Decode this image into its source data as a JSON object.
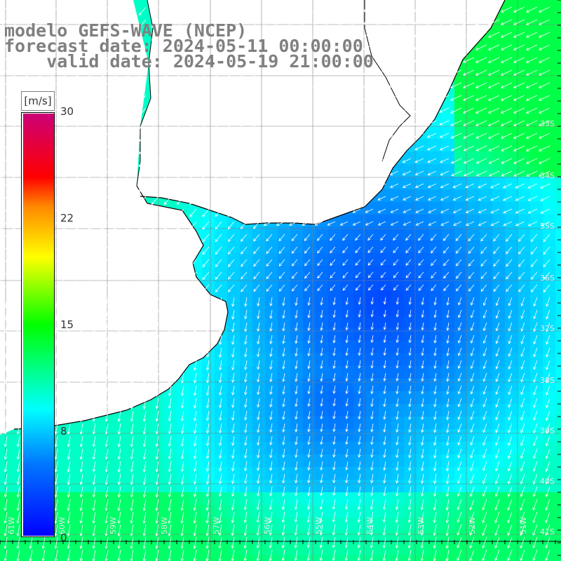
{
  "title": {
    "line1": "modelo GEFS-WAVE (NCEP)",
    "line2": "forecast date: 2024-05-11 00:00:00",
    "line3": "    valid date: 2024-05-19 21:00:00"
  },
  "colorbar": {
    "units": "[m/s]",
    "ticks": [
      "30",
      "22",
      "15",
      "8",
      "0"
    ],
    "tick_values": [
      30,
      22,
      15,
      8,
      0
    ],
    "vmin": 0,
    "vmax": 30,
    "colors": [
      "#0000ff",
      "#0077ff",
      "#00ffff",
      "#00ff00",
      "#ffff00",
      "#ff8800",
      "#ff0000",
      "#cc0077"
    ]
  },
  "map": {
    "lat_labels": [
      "33S",
      "34S",
      "35S",
      "36S",
      "37S",
      "38S",
      "39S",
      "40S",
      "41S"
    ],
    "lon_labels": [
      "61W",
      "60W",
      "59W",
      "58W",
      "57W",
      "56W",
      "55W",
      "54W",
      "53W",
      "52W",
      "51W"
    ],
    "land_color": "#ffffff",
    "coast_color": "#000000",
    "grid_color": "#808080",
    "arrow_color": "#ffffff",
    "dominant_wind": "north to south, weakest near 36S 54W"
  }
}
